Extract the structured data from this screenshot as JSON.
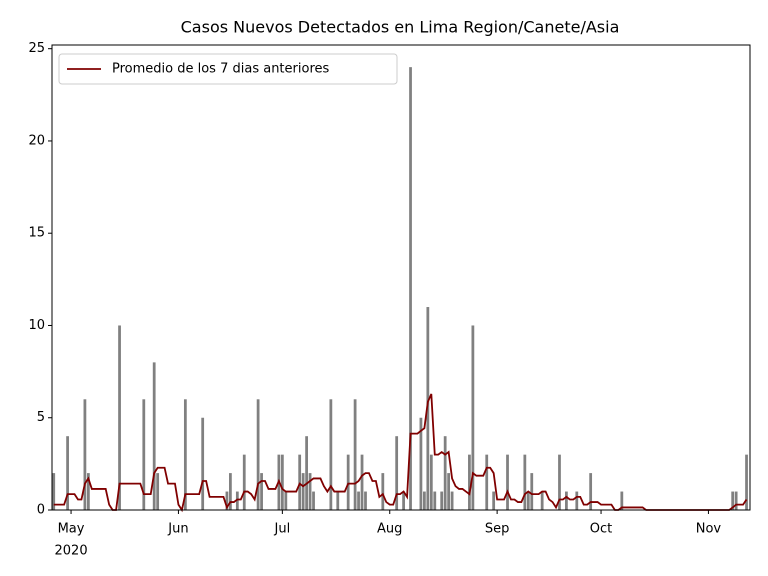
{
  "chart_data": {
    "type": "bar",
    "title": "Casos Nuevos Detectados en Lima Region/Canete/Asia",
    "categories": [
      null,
      null,
      null,
      null,
      null,
      null,
      null,
      null,
      null,
      null,
      null,
      null,
      null,
      null,
      null,
      null,
      null,
      null,
      null,
      null,
      null,
      null,
      null,
      null,
      null,
      null,
      null,
      null,
      null,
      null,
      null,
      null,
      null,
      null,
      null,
      null,
      null,
      null,
      null,
      null,
      null,
      null,
      null,
      null,
      null,
      null,
      null,
      null,
      null,
      null,
      null,
      null,
      null,
      null,
      null,
      null,
      null,
      null,
      null,
      null,
      null,
      null,
      null,
      null,
      null,
      null,
      null,
      null,
      null,
      null,
      null,
      null,
      null,
      null,
      null,
      null,
      null,
      null,
      null,
      null,
      null,
      null,
      null,
      null,
      null,
      null,
      null,
      null,
      null,
      null,
      null,
      null,
      null,
      null,
      null,
      null,
      null,
      null,
      null,
      null,
      null,
      null,
      null,
      null,
      null,
      null,
      null,
      null,
      null,
      null,
      null,
      null,
      null,
      null,
      null,
      null,
      null,
      null,
      null,
      null,
      null,
      null,
      null,
      null,
      null,
      null,
      null,
      null,
      null,
      null,
      null,
      null,
      null,
      null,
      null,
      null,
      null,
      null,
      null,
      null,
      null,
      null,
      null,
      null,
      null,
      null,
      null,
      null,
      null,
      null,
      null,
      null,
      null,
      null,
      null,
      null,
      null,
      null,
      null,
      null,
      null,
      null,
      null,
      null,
      null,
      null,
      null,
      null,
      null,
      null,
      null,
      null,
      null,
      null,
      null,
      null,
      null,
      null,
      null,
      null,
      null,
      null,
      null,
      null,
      null,
      null,
      null,
      null,
      null,
      null,
      null,
      null,
      null,
      null,
      null,
      null,
      null,
      null,
      null,
      null,
      null
    ],
    "values": [
      2,
      0,
      0,
      0,
      4,
      0,
      0,
      0,
      0,
      6,
      2,
      0,
      0,
      0,
      0,
      0,
      0,
      0,
      0,
      10,
      0,
      0,
      0,
      0,
      0,
      0,
      6,
      0,
      0,
      8,
      2,
      0,
      0,
      0,
      0,
      0,
      0,
      0,
      6,
      0,
      0,
      0,
      0,
      5,
      0,
      0,
      0,
      0,
      0,
      0,
      1,
      2,
      0,
      1,
      0,
      3,
      0,
      0,
      0,
      6,
      2,
      0,
      0,
      0,
      0,
      3,
      3,
      1,
      0,
      0,
      0,
      3,
      2,
      4,
      2,
      1,
      0,
      0,
      0,
      0,
      6,
      0,
      1,
      0,
      0,
      3,
      0,
      6,
      1,
      3,
      1,
      0,
      0,
      0,
      0,
      2,
      0,
      0,
      0,
      4,
      0,
      1,
      0,
      24,
      0,
      0,
      5,
      1,
      11,
      3,
      1,
      0,
      1,
      4,
      2,
      1,
      0,
      0,
      0,
      0,
      3,
      10,
      0,
      0,
      0,
      3,
      0,
      1,
      0,
      0,
      0,
      3,
      0,
      0,
      0,
      0,
      3,
      1,
      2,
      0,
      0,
      1,
      0,
      0,
      0,
      0,
      3,
      0,
      1,
      0,
      0,
      1,
      0,
      0,
      0,
      2,
      0,
      0,
      0,
      0,
      0,
      0,
      0,
      0,
      1,
      0,
      0,
      0,
      0,
      0,
      0,
      0,
      0,
      0,
      0,
      0,
      0,
      0,
      0,
      0,
      0,
      0,
      0,
      0,
      0,
      0,
      0,
      0,
      0,
      0,
      0,
      0,
      0,
      0,
      0,
      0,
      1,
      1,
      0,
      0,
      3
    ],
    "color": "#808080",
    "series": [
      {
        "name": "Promedio de los 7 dias anteriores",
        "color": "#800000",
        "values": [
          0.29,
          0.29,
          0.29,
          0.29,
          0.86,
          0.86,
          0.86,
          0.57,
          0.57,
          1.43,
          1.71,
          1.14,
          1.14,
          1.14,
          1.14,
          1.14,
          0.29,
          0,
          0,
          1.43,
          1.43,
          1.43,
          1.43,
          1.43,
          1.43,
          1.43,
          0.86,
          0.86,
          0.86,
          2,
          2.29,
          2.29,
          2.29,
          1.43,
          1.43,
          1.43,
          0.29,
          0,
          0.86,
          0.86,
          0.86,
          0.86,
          0.86,
          1.57,
          1.57,
          0.71,
          0.71,
          0.71,
          0.71,
          0.71,
          0.14,
          0.43,
          0.43,
          0.57,
          0.57,
          1,
          1,
          0.86,
          0.57,
          1.43,
          1.57,
          1.57,
          1.14,
          1.14,
          1.14,
          1.57,
          1.14,
          1,
          1,
          1,
          1,
          1.43,
          1.29,
          1.43,
          1.57,
          1.71,
          1.71,
          1.71,
          1.29,
          1,
          1.29,
          1,
          1,
          1,
          1,
          1.43,
          1.43,
          1.43,
          1.57,
          1.86,
          2,
          2,
          1.57,
          1.57,
          0.71,
          0.86,
          0.43,
          0.29,
          0.29,
          0.86,
          0.86,
          1,
          0.71,
          4.14,
          4.14,
          4.14,
          4.29,
          4.43,
          5.86,
          6.29,
          3,
          3,
          3.14,
          3,
          3.14,
          1.71,
          1.29,
          1.14,
          1.14,
          1,
          0.86,
          2,
          1.86,
          1.86,
          1.86,
          2.29,
          2.29,
          2,
          0.57,
          0.57,
          0.57,
          1,
          0.57,
          0.57,
          0.43,
          0.43,
          0.86,
          1,
          0.86,
          0.86,
          0.86,
          1,
          1,
          0.57,
          0.43,
          0.14,
          0.57,
          0.57,
          0.71,
          0.57,
          0.57,
          0.71,
          0.71,
          0.29,
          0.29,
          0.43,
          0.43,
          0.43,
          0.29,
          0.29,
          0.29,
          0.29,
          0,
          0,
          0.14,
          0.14,
          0.14,
          0.14,
          0.14,
          0.14,
          0.14,
          0,
          0,
          0,
          0,
          0,
          0,
          0,
          0,
          0,
          0,
          0,
          0,
          0,
          0,
          0,
          0,
          0,
          0,
          0,
          0,
          0,
          0,
          0,
          0,
          0,
          0.14,
          0.29,
          0.29,
          0.29,
          0.57
        ]
      }
    ],
    "xlim": [
      -0.5,
      201
    ],
    "xticks": [
      {
        "value": 5,
        "label": "May"
      },
      {
        "value": 36,
        "label": "Jun"
      },
      {
        "value": 66,
        "label": "Jul"
      },
      {
        "value": 97,
        "label": "Aug"
      },
      {
        "value": 128,
        "label": "Sep"
      },
      {
        "value": 158,
        "label": "Oct"
      },
      {
        "value": 189,
        "label": "Nov"
      }
    ],
    "x_sublabel": "2020",
    "ylim": [
      0,
      25.2
    ],
    "yticks": [
      0,
      5,
      10,
      15,
      20,
      25
    ],
    "legend": "upper left"
  }
}
